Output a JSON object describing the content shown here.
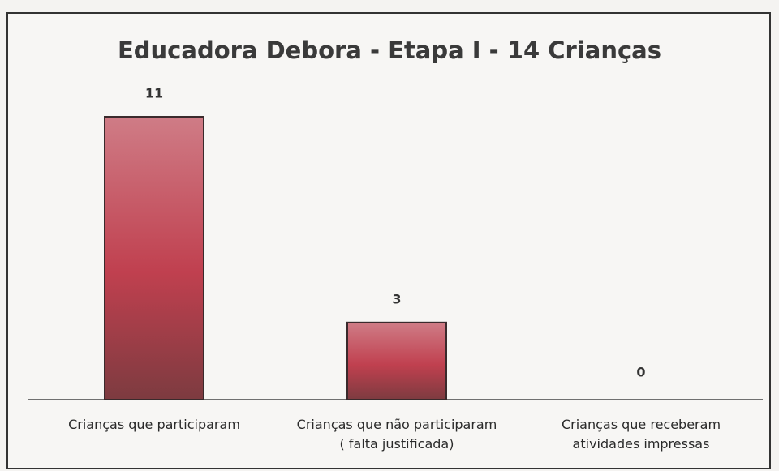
{
  "chart_data": {
    "type": "bar",
    "title": "Educadora Debora - Etapa I - 14 Crianças",
    "categories": [
      "Crianças que participaram",
      "Crianças que não participaram\n( falta justificada)",
      "Crianças  que receberam\natividades impressas"
    ],
    "values": [
      11,
      3,
      0
    ],
    "color": "#c0404f"
  }
}
